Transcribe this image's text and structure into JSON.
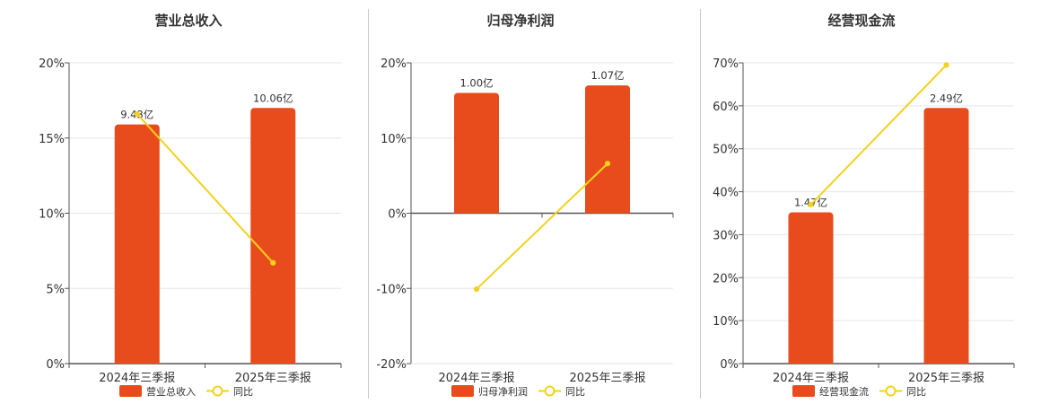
{
  "colors": {
    "bar": "#E84C1C",
    "line": "#F2D21E",
    "grid": "#e6e6e6",
    "axis": "#555555"
  },
  "chart_data": [
    {
      "type": "bar",
      "title": "营业总收入",
      "categories": [
        "2024年三季报",
        "2025年三季报"
      ],
      "ylim": [
        0,
        20
      ],
      "yticks": [
        "0%",
        "5%",
        "10%",
        "15%",
        "20%"
      ],
      "series": [
        {
          "name": "营业总收入",
          "type": "bar",
          "values": [
            15.9,
            17.0
          ],
          "labels": [
            "9.43亿",
            "10.06亿"
          ]
        },
        {
          "name": "同比",
          "type": "line",
          "values": [
            16.6,
            6.7
          ]
        }
      ],
      "legend": "bottom"
    },
    {
      "type": "bar",
      "title": "归母净利润",
      "categories": [
        "2024年三季报",
        "2025年三季报"
      ],
      "ylim": [
        -20,
        20
      ],
      "yticks": [
        "-20%",
        "-10%",
        "0%",
        "10%",
        "20%"
      ],
      "series": [
        {
          "name": "归母净利润",
          "type": "bar",
          "values": [
            16.0,
            17.0
          ],
          "labels": [
            "1.00亿",
            "1.07亿"
          ]
        },
        {
          "name": "同比",
          "type": "line",
          "values": [
            -10.1,
            6.6
          ]
        }
      ],
      "legend": "bottom"
    },
    {
      "type": "bar",
      "title": "经营现金流",
      "categories": [
        "2024年三季报",
        "2025年三季报"
      ],
      "ylim": [
        0,
        70
      ],
      "yticks": [
        "0%",
        "10%",
        "20%",
        "30%",
        "40%",
        "50%",
        "60%",
        "70%"
      ],
      "series": [
        {
          "name": "经营现金流",
          "type": "bar",
          "values": [
            35.2,
            59.5
          ],
          "labels": [
            "1.47亿",
            "2.49亿"
          ]
        },
        {
          "name": "同比",
          "type": "line",
          "values": [
            37.0,
            69.5
          ]
        }
      ],
      "legend": "bottom"
    }
  ]
}
